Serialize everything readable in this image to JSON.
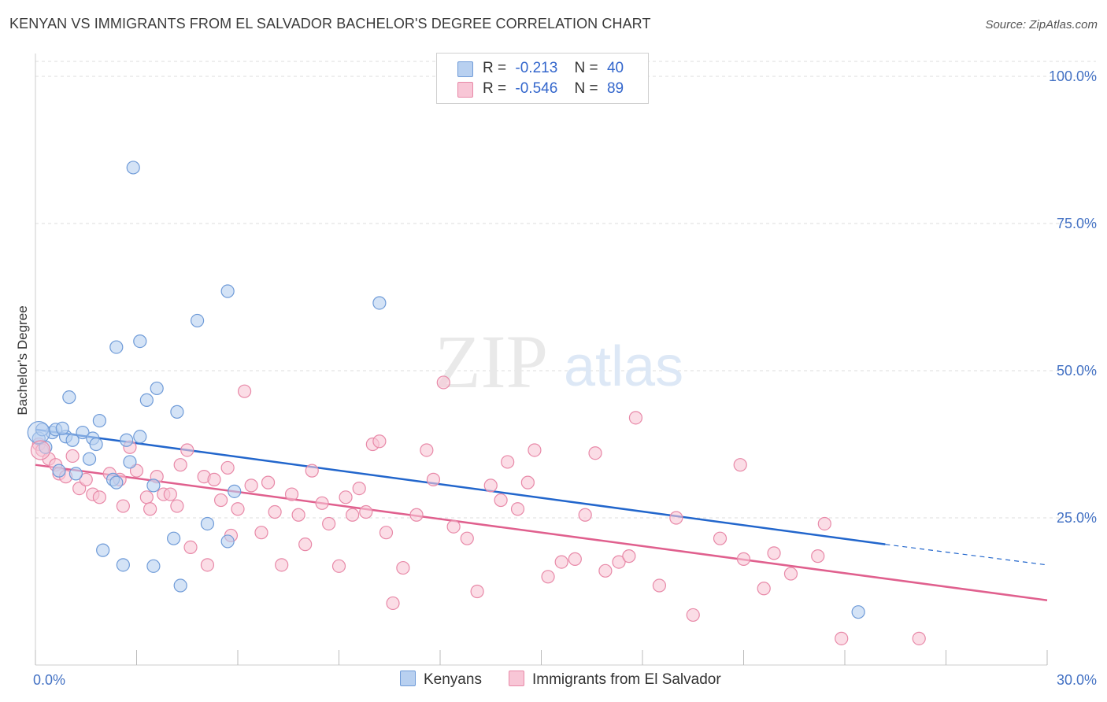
{
  "title": "KENYAN VS IMMIGRANTS FROM EL SALVADOR BACHELOR'S DEGREE CORRELATION CHART",
  "source": "Source: ZipAtlas.com",
  "watermark": {
    "zip": "ZIP",
    "atlas": "atlas"
  },
  "legend": {
    "rows": [
      {
        "r_label": "R =",
        "r_value": "-0.213",
        "n_label": "N =",
        "n_value": "40"
      },
      {
        "r_label": "R =",
        "r_value": "-0.546",
        "n_label": "N =",
        "n_value": "89"
      }
    ]
  },
  "colors": {
    "kenyans_fill": "#b8d0f0",
    "kenyans_stroke": "#6f9bd8",
    "kenyans_line": "#2266cc",
    "salvador_fill": "#f8c6d6",
    "salvador_stroke": "#e889a8",
    "salvador_line": "#e0608e",
    "grid": "#dddddd",
    "tick_text": "#4472c4"
  },
  "chart_data": {
    "type": "scatter",
    "title": "KENYAN VS IMMIGRANTS FROM EL SALVADOR BACHELOR'S DEGREE CORRELATION CHART",
    "xlabel": "",
    "ylabel": "Bachelor's Degree",
    "xlim": [
      0,
      30
    ],
    "ylim": [
      0,
      100
    ],
    "x_tick_labels": [
      "0.0%",
      "30.0%"
    ],
    "y_tick_labels": [
      "100.0%",
      "75.0%",
      "50.0%",
      "25.0%"
    ],
    "y_tick_values": [
      100,
      75,
      50,
      25
    ],
    "grid": true,
    "legend_position": "top-center",
    "series": [
      {
        "name": "Kenyans",
        "color": "#6f9bd8",
        "trend": {
          "x0": 0,
          "y0": 40.0,
          "x1": 25.2,
          "y1": 20.5,
          "dash_to_x": 30,
          "dash_to_y": 17.0
        },
        "points": [
          [
            0.1,
            38.5
          ],
          [
            0.3,
            37.0
          ],
          [
            0.5,
            39.5
          ],
          [
            0.6,
            40.0
          ],
          [
            0.7,
            33.0
          ],
          [
            0.9,
            38.8
          ],
          [
            1.0,
            45.5
          ],
          [
            1.1,
            38.2
          ],
          [
            1.2,
            32.5
          ],
          [
            1.4,
            39.5
          ],
          [
            1.6,
            35.0
          ],
          [
            1.7,
            38.5
          ],
          [
            1.8,
            37.5
          ],
          [
            1.9,
            41.5
          ],
          [
            2.0,
            19.5
          ],
          [
            2.3,
            31.5
          ],
          [
            2.4,
            31.0
          ],
          [
            2.4,
            54.0
          ],
          [
            2.6,
            17.0
          ],
          [
            2.7,
            38.2
          ],
          [
            2.8,
            34.5
          ],
          [
            2.9,
            84.5
          ],
          [
            3.1,
            38.8
          ],
          [
            3.1,
            55.0
          ],
          [
            3.3,
            45.0
          ],
          [
            3.5,
            30.5
          ],
          [
            3.5,
            16.8
          ],
          [
            3.6,
            47.0
          ],
          [
            4.1,
            21.5
          ],
          [
            4.2,
            43.0
          ],
          [
            4.3,
            13.5
          ],
          [
            4.8,
            58.5
          ],
          [
            5.1,
            24.0
          ],
          [
            5.7,
            63.5
          ],
          [
            5.7,
            21.0
          ],
          [
            5.9,
            29.5
          ],
          [
            10.2,
            61.5
          ],
          [
            24.4,
            9.0
          ],
          [
            0.2,
            40.0
          ],
          [
            0.8,
            40.2
          ]
        ]
      },
      {
        "name": "Immigrants from El Salvador",
        "color": "#e889a8",
        "trend": {
          "x0": 0,
          "y0": 34.0,
          "x1": 30,
          "y1": 11.0
        },
        "points": [
          [
            0.1,
            37.5
          ],
          [
            0.2,
            36.5
          ],
          [
            0.4,
            35.0
          ],
          [
            0.6,
            34.0
          ],
          [
            0.7,
            32.5
          ],
          [
            0.9,
            32.0
          ],
          [
            1.1,
            35.5
          ],
          [
            1.3,
            30.0
          ],
          [
            1.5,
            31.5
          ],
          [
            1.7,
            29.0
          ],
          [
            1.9,
            28.5
          ],
          [
            2.2,
            32.5
          ],
          [
            2.5,
            31.5
          ],
          [
            2.6,
            27.0
          ],
          [
            2.8,
            37.0
          ],
          [
            3.0,
            33.0
          ],
          [
            3.3,
            28.5
          ],
          [
            3.4,
            26.5
          ],
          [
            3.6,
            32.0
          ],
          [
            3.8,
            29.0
          ],
          [
            4.0,
            29.0
          ],
          [
            4.2,
            27.0
          ],
          [
            4.3,
            34.0
          ],
          [
            4.5,
            36.5
          ],
          [
            4.6,
            20.0
          ],
          [
            5.0,
            32.0
          ],
          [
            5.1,
            17.0
          ],
          [
            5.3,
            31.5
          ],
          [
            5.5,
            28.0
          ],
          [
            5.7,
            33.5
          ],
          [
            5.8,
            22.0
          ],
          [
            6.0,
            26.5
          ],
          [
            6.2,
            46.5
          ],
          [
            6.4,
            30.5
          ],
          [
            6.7,
            22.5
          ],
          [
            6.9,
            31.0
          ],
          [
            7.1,
            26.0
          ],
          [
            7.3,
            17.0
          ],
          [
            7.6,
            29.0
          ],
          [
            7.8,
            25.5
          ],
          [
            8.0,
            20.5
          ],
          [
            8.2,
            33.0
          ],
          [
            8.5,
            27.5
          ],
          [
            8.7,
            24.0
          ],
          [
            9.0,
            16.8
          ],
          [
            9.2,
            28.5
          ],
          [
            9.4,
            25.5
          ],
          [
            9.6,
            30.0
          ],
          [
            9.8,
            26.0
          ],
          [
            10.0,
            37.5
          ],
          [
            10.2,
            38.0
          ],
          [
            10.4,
            22.5
          ],
          [
            10.6,
            10.5
          ],
          [
            10.9,
            16.5
          ],
          [
            11.3,
            25.5
          ],
          [
            11.6,
            36.5
          ],
          [
            11.8,
            31.5
          ],
          [
            12.1,
            48.0
          ],
          [
            12.4,
            23.5
          ],
          [
            12.8,
            21.5
          ],
          [
            13.1,
            12.5
          ],
          [
            13.5,
            30.5
          ],
          [
            13.8,
            28.0
          ],
          [
            14.0,
            34.5
          ],
          [
            14.3,
            26.5
          ],
          [
            14.6,
            31.0
          ],
          [
            14.8,
            36.5
          ],
          [
            15.2,
            15.0
          ],
          [
            15.6,
            17.5
          ],
          [
            16.0,
            18.0
          ],
          [
            16.3,
            25.5
          ],
          [
            16.6,
            36.0
          ],
          [
            16.9,
            16.0
          ],
          [
            17.3,
            17.5
          ],
          [
            17.6,
            18.5
          ],
          [
            17.8,
            42.0
          ],
          [
            18.5,
            13.5
          ],
          [
            19.0,
            25.0
          ],
          [
            19.5,
            8.5
          ],
          [
            20.3,
            21.5
          ],
          [
            20.9,
            34.0
          ],
          [
            21.0,
            18.0
          ],
          [
            21.6,
            13.0
          ],
          [
            21.9,
            19.0
          ],
          [
            22.4,
            15.5
          ],
          [
            23.4,
            24.0
          ],
          [
            23.2,
            18.5
          ],
          [
            23.9,
            4.5
          ],
          [
            26.2,
            4.5
          ]
        ]
      }
    ]
  },
  "bottom_legend": {
    "items": [
      "Kenyans",
      "Immigrants from El Salvador"
    ]
  }
}
